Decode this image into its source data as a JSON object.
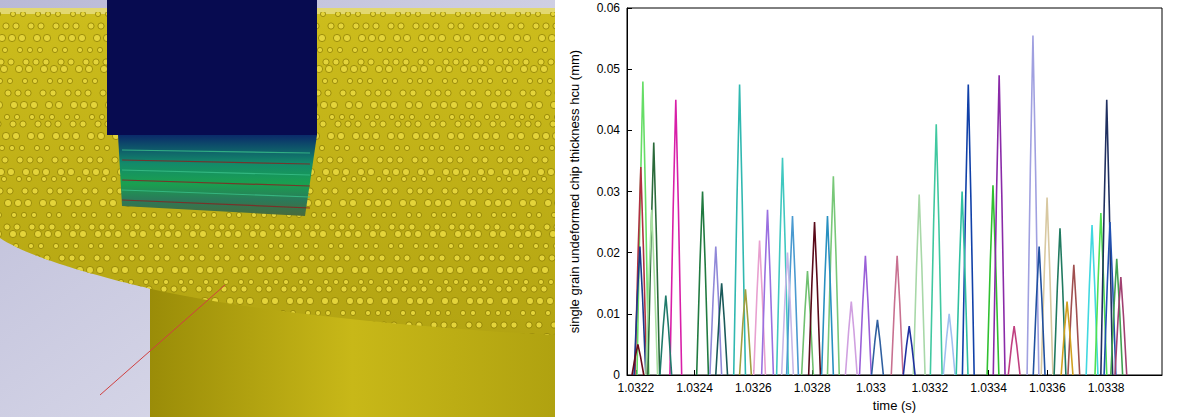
{
  "chart_data": {
    "type": "line",
    "xlabel": "time (s)",
    "ylabel": "single grain undeformed chip thickness hcu (mm)",
    "xlim": [
      1.03217,
      1.03399
    ],
    "xticks": [
      1.0322,
      1.0324,
      1.0326,
      1.0328,
      1.033,
      1.0332,
      1.0334,
      1.0336,
      1.0338
    ],
    "ylim": [
      0,
      0.06
    ],
    "yticks": [
      0,
      0.01,
      0.02,
      0.03,
      0.04,
      0.05,
      0.06
    ],
    "grid": false,
    "marker": "none",
    "line_style": "solid",
    "series": [
      {
        "color": "#66dd66",
        "x": [
          1.032204,
          1.032215,
          1.032224,
          1.032233,
          1.032244
        ],
        "values": [
          0,
          0.029,
          0.048,
          0.029,
          0
        ]
      },
      {
        "color": "#b03040",
        "x": [
          1.032197,
          1.032208,
          1.032217,
          1.032226,
          1.032237
        ],
        "values": [
          0,
          0.0204,
          0.034,
          0.0204,
          0
        ]
      },
      {
        "color": "#1a3a8a",
        "x": [
          1.032194,
          1.032205,
          1.032214,
          1.032223,
          1.032234
        ],
        "values": [
          0,
          0.0126,
          0.021,
          0.0126,
          0
        ]
      },
      {
        "color": "#6a0a1a",
        "x": [
          1.032187,
          1.032198,
          1.032207,
          1.032216,
          1.032227
        ],
        "values": [
          0,
          0.003,
          0.005,
          0.003,
          0
        ]
      },
      {
        "color": "#2a6a3a",
        "x": [
          1.032241,
          1.032252,
          1.032261,
          1.03227,
          1.032281
        ],
        "values": [
          0,
          0.0228,
          0.038,
          0.0228,
          0
        ]
      },
      {
        "color": "#a8e0a0",
        "x": [
          1.032234,
          1.032245,
          1.032254,
          1.032263,
          1.032274
        ],
        "values": [
          0,
          0.0162,
          0.027,
          0.0162,
          0
        ]
      },
      {
        "color": "#d81fa8",
        "x": [
          1.032316,
          1.032327,
          1.032336,
          1.032345,
          1.032356
        ],
        "values": [
          0,
          0.027,
          0.045,
          0.027,
          0
        ]
      },
      {
        "color": "#1f7a6a",
        "x": [
          1.032282,
          1.032293,
          1.032302,
          1.032311,
          1.032322
        ],
        "values": [
          0,
          0.0078,
          0.013,
          0.0078,
          0
        ]
      },
      {
        "color": "#207a40",
        "x": [
          1.032407,
          1.032418,
          1.032427,
          1.032436,
          1.032447
        ],
        "values": [
          0,
          0.018,
          0.03,
          0.018,
          0
        ]
      },
      {
        "color": "#9088d8",
        "x": [
          1.032452,
          1.032463,
          1.032472,
          1.032481,
          1.032492
        ],
        "values": [
          0,
          0.0126,
          0.021,
          0.0126,
          0
        ]
      },
      {
        "color": "#1a5a5a",
        "x": [
          1.032472,
          1.032483,
          1.032492,
          1.032501,
          1.032512
        ],
        "values": [
          0,
          0.009,
          0.015,
          0.009,
          0
        ]
      },
      {
        "color": "#30b8b0",
        "x": [
          1.032533,
          1.032544,
          1.032553,
          1.032562,
          1.032573
        ],
        "values": [
          0,
          0.0285,
          0.0475,
          0.0285,
          0
        ]
      },
      {
        "color": "#a0a040",
        "x": [
          1.032553,
          1.032564,
          1.032573,
          1.032582,
          1.032593
        ],
        "values": [
          0,
          0.0084,
          0.014,
          0.0084,
          0
        ]
      },
      {
        "color": "#e8a0d0",
        "x": [
          1.032601,
          1.032612,
          1.032621,
          1.03263,
          1.032641
        ],
        "values": [
          0,
          0.0132,
          0.022,
          0.0132,
          0
        ]
      },
      {
        "color": "#9a70e0",
        "x": [
          1.032628,
          1.032639,
          1.032648,
          1.032657,
          1.032668
        ],
        "values": [
          0,
          0.0162,
          0.027,
          0.0162,
          0
        ]
      },
      {
        "color": "#40c8c0",
        "x": [
          1.032679,
          1.03269,
          1.032699,
          1.032708,
          1.032719
        ],
        "values": [
          0,
          0.0213,
          0.0355,
          0.0213,
          0
        ]
      },
      {
        "color": "#4a9ad0",
        "x": [
          1.032713,
          1.032724,
          1.032733,
          1.032742,
          1.032753
        ],
        "values": [
          0,
          0.0156,
          0.026,
          0.0156,
          0
        ]
      },
      {
        "color": "#c8b8e8",
        "x": [
          1.032696,
          1.032707,
          1.032716,
          1.032725,
          1.032736
        ],
        "values": [
          0,
          0.012,
          0.02,
          0.012,
          0
        ]
      },
      {
        "color": "#70c070",
        "x": [
          1.032764,
          1.032775,
          1.032784,
          1.032793,
          1.032804
        ],
        "values": [
          0,
          0.0102,
          0.017,
          0.0102,
          0
        ]
      },
      {
        "color": "#5a0a1a",
        "x": [
          1.032788,
          1.032799,
          1.032808,
          1.032817,
          1.032828
        ],
        "values": [
          0,
          0.015,
          0.025,
          0.015,
          0
        ]
      },
      {
        "color": "#78c878",
        "x": [
          1.032852,
          1.032863,
          1.032872,
          1.032881,
          1.032892
        ],
        "values": [
          0,
          0.0195,
          0.0325,
          0.0195,
          0
        ]
      },
      {
        "color": "#2890c0",
        "x": [
          1.032832,
          1.032843,
          1.032852,
          1.032861,
          1.032872
        ],
        "values": [
          0,
          0.0156,
          0.026,
          0.0156,
          0
        ]
      },
      {
        "color": "#9a60d8",
        "x": [
          1.032961,
          1.032972,
          1.032981,
          1.03299,
          1.033001
        ],
        "values": [
          0,
          0.0117,
          0.0195,
          0.0117,
          0
        ]
      },
      {
        "color": "#c87090",
        "x": [
          1.033069,
          1.03308,
          1.033089,
          1.033098,
          1.033109
        ],
        "values": [
          0,
          0.0117,
          0.0195,
          0.0117,
          0
        ]
      },
      {
        "color": "#3060a0",
        "x": [
          1.033002,
          1.033013,
          1.033022,
          1.033031,
          1.033042
        ],
        "values": [
          0,
          0.0054,
          0.009,
          0.0054,
          0
        ]
      },
      {
        "color": "#a8d8a8",
        "x": [
          1.033144,
          1.033155,
          1.033164,
          1.033173,
          1.033184
        ],
        "values": [
          0,
          0.0177,
          0.0295,
          0.0177,
          0
        ]
      },
      {
        "color": "#40c8a0",
        "x": [
          1.033202,
          1.033213,
          1.033222,
          1.033231,
          1.033242
        ],
        "values": [
          0,
          0.0246,
          0.041,
          0.0246,
          0
        ]
      },
      {
        "color": "#a0c0f0",
        "x": [
          1.033246,
          1.033257,
          1.033266,
          1.033275,
          1.033286
        ],
        "values": [
          0,
          0.006,
          0.01,
          0.006,
          0
        ]
      },
      {
        "color": "#1040a8",
        "x": [
          1.033311,
          1.033322,
          1.033331,
          1.03334,
          1.033351
        ],
        "values": [
          0,
          0.0285,
          0.0475,
          0.0285,
          0
        ]
      },
      {
        "color": "#30c0a0",
        "x": [
          1.03329,
          1.033301,
          1.03331,
          1.033319,
          1.03333
        ],
        "values": [
          0,
          0.018,
          0.03,
          0.018,
          0
        ]
      },
      {
        "color": "#30c030",
        "x": [
          1.033395,
          1.033406,
          1.033415,
          1.033424,
          1.033435
        ],
        "values": [
          0,
          0.0186,
          0.031,
          0.0186,
          0
        ]
      },
      {
        "color": "#8a2aa8",
        "x": [
          1.033416,
          1.033427,
          1.033436,
          1.033445,
          1.033456
        ],
        "values": [
          0,
          0.0294,
          0.049,
          0.0294,
          0
        ]
      },
      {
        "color": "#a0a0e0",
        "x": [
          1.033531,
          1.033542,
          1.033551,
          1.03356,
          1.033571
        ],
        "values": [
          0,
          0.0333,
          0.0555,
          0.0333,
          0
        ]
      },
      {
        "color": "#d8c8a0",
        "x": [
          1.033579,
          1.03359,
          1.033599,
          1.033608,
          1.033619
        ],
        "values": [
          0,
          0.0174,
          0.029,
          0.0174,
          0
        ]
      },
      {
        "color": "#2050a0",
        "x": [
          1.033552,
          1.033563,
          1.033572,
          1.033581,
          1.033592
        ],
        "values": [
          0,
          0.0126,
          0.021,
          0.0126,
          0
        ]
      },
      {
        "color": "#207a60",
        "x": [
          1.033623,
          1.033634,
          1.033643,
          1.033652,
          1.033663
        ],
        "values": [
          0,
          0.0144,
          0.024,
          0.0144,
          0
        ]
      },
      {
        "color": "#40d8e0",
        "x": [
          1.033732,
          1.033743,
          1.033752,
          1.033761,
          1.033772
        ],
        "values": [
          0,
          0.0147,
          0.0245,
          0.0147,
          0
        ]
      },
      {
        "color": "#a05050",
        "x": [
          1.03367,
          1.033681,
          1.03369,
          1.033699,
          1.03371
        ],
        "values": [
          0,
          0.0108,
          0.018,
          0.0108,
          0
        ]
      },
      {
        "color": "#50e050",
        "x": [
          1.033762,
          1.033773,
          1.033782,
          1.033791,
          1.033802
        ],
        "values": [
          0,
          0.0159,
          0.0265,
          0.0159,
          0
        ]
      },
      {
        "color": "#203060",
        "x": [
          1.033782,
          1.033793,
          1.033802,
          1.033811,
          1.033822
        ],
        "values": [
          0,
          0.027,
          0.045,
          0.027,
          0
        ]
      },
      {
        "color": "#2050b0",
        "x": [
          1.033793,
          1.033804,
          1.033813,
          1.033822,
          1.033833
        ],
        "values": [
          0,
          0.015,
          0.025,
          0.015,
          0
        ]
      },
      {
        "color": "#40a050",
        "x": [
          1.033816,
          1.033827,
          1.033836,
          1.033845,
          1.033856
        ],
        "values": [
          0,
          0.0114,
          0.019,
          0.0114,
          0
        ]
      },
      {
        "color": "#a04070",
        "x": [
          1.03383,
          1.033841,
          1.03385,
          1.033859,
          1.03387
        ],
        "values": [
          0,
          0.0096,
          0.016,
          0.0096,
          0
        ]
      },
      {
        "color": "#d0a020",
        "x": [
          1.033647,
          1.033658,
          1.033667,
          1.033676,
          1.033687
        ],
        "values": [
          0,
          0.0072,
          0.012,
          0.0072,
          0
        ]
      },
      {
        "color": "#c04080",
        "x": [
          1.033467,
          1.033478,
          1.033487,
          1.033496,
          1.033507
        ],
        "values": [
          0,
          0.0048,
          0.008,
          0.0048,
          0
        ]
      },
      {
        "color": "#d0a0e0",
        "x": [
          1.032913,
          1.032924,
          1.032933,
          1.032942,
          1.032953
        ],
        "values": [
          0,
          0.0072,
          0.012,
          0.0072,
          0
        ]
      },
      {
        "color": "#2030a0",
        "x": [
          1.03311,
          1.033121,
          1.03313,
          1.033139,
          1.03315
        ],
        "values": [
          0,
          0.0048,
          0.008,
          0.0048,
          0
        ]
      }
    ]
  }
}
